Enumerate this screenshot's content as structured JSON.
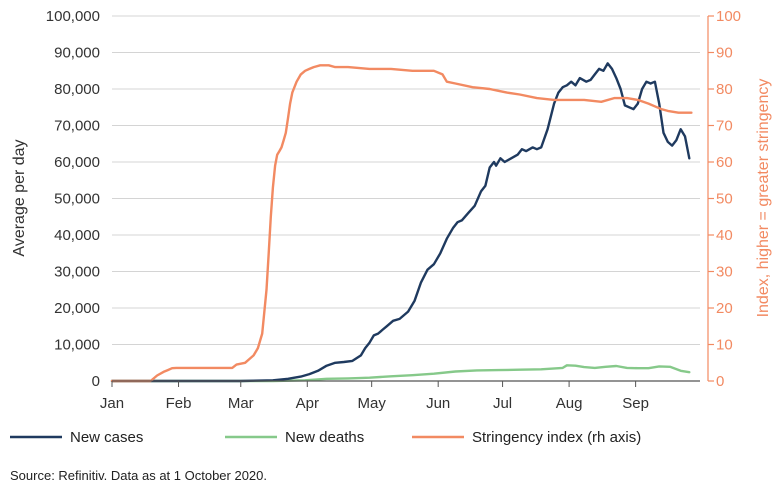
{
  "chart_data": {
    "type": "line",
    "xlabel": "",
    "ylabel": "Average per day",
    "y2label": "Index, higher = greater stringency",
    "ylim": [
      0,
      100000
    ],
    "y2lim": [
      0,
      100
    ],
    "yticks": [
      "0",
      "10,000",
      "20,000",
      "30,000",
      "40,000",
      "50,000",
      "60,000",
      "70,000",
      "80,000",
      "90,000",
      "100,000"
    ],
    "y2ticks": [
      "0",
      "10",
      "20",
      "30",
      "40",
      "50",
      "60",
      "70",
      "80",
      "90",
      "100"
    ],
    "x_unit": "days since 1 January 2020",
    "xlim": [
      0,
      274
    ],
    "month_ticks": [
      {
        "label": "Jan",
        "day": 0
      },
      {
        "label": "Feb",
        "day": 31
      },
      {
        "label": "Mar",
        "day": 60
      },
      {
        "label": "Apr",
        "day": 91
      },
      {
        "label": "May",
        "day": 121
      },
      {
        "label": "Jun",
        "day": 152
      },
      {
        "label": "Jul",
        "day": 182
      },
      {
        "label": "Aug",
        "day": 213
      },
      {
        "label": "Sep",
        "day": 244
      }
    ],
    "grid": "horizontal",
    "series": [
      {
        "name": "New cases",
        "axis": "left",
        "color": "#1f3a5f",
        "x": [
          0,
          40,
          60,
          75,
          82,
          88,
          92,
          96,
          100,
          104,
          108,
          112,
          116,
          118,
          120,
          122,
          124,
          126,
          128,
          131,
          134,
          138,
          141,
          144,
          147,
          150,
          153,
          156,
          159,
          161,
          163,
          166,
          169,
          172,
          174,
          176,
          178,
          179,
          181,
          183,
          186,
          189,
          191,
          193,
          196,
          198,
          200,
          203,
          206,
          208,
          210,
          212,
          214,
          216,
          218,
          221,
          223,
          225,
          227,
          229,
          231,
          233,
          235,
          237,
          239,
          241,
          243,
          245,
          247,
          249,
          251,
          253,
          255,
          257,
          259,
          261,
          263,
          265,
          267,
          269
        ],
        "y": [
          0,
          0,
          0,
          200,
          600,
          1200,
          1900,
          2800,
          4200,
          5000,
          5200,
          5500,
          7000,
          9000,
          10500,
          12500,
          13000,
          14000,
          15000,
          16500,
          17000,
          19000,
          22000,
          27000,
          30500,
          32000,
          35000,
          39000,
          42000,
          43500,
          44000,
          46000,
          48000,
          52000,
          53500,
          58500,
          60000,
          59000,
          61000,
          60000,
          61000,
          62000,
          63500,
          63000,
          64000,
          63500,
          64000,
          69000,
          76000,
          79000,
          80500,
          81000,
          82000,
          81000,
          83000,
          82000,
          82500,
          84000,
          85500,
          85000,
          87000,
          85500,
          83000,
          80000,
          75500,
          75000,
          74500,
          76000,
          80000,
          82000,
          81500,
          82000,
          76000,
          68000,
          65500,
          64500,
          66000,
          69000,
          67000,
          61000
        ]
      },
      {
        "name": "New deaths",
        "axis": "left",
        "color": "#86c98a",
        "x": [
          0,
          75,
          90,
          100,
          110,
          120,
          130,
          140,
          150,
          160,
          170,
          180,
          190,
          200,
          210,
          212,
          216,
          220,
          225,
          230,
          235,
          240,
          245,
          250,
          255,
          260,
          265,
          269
        ],
        "y": [
          0,
          0,
          200,
          600,
          700,
          900,
          1300,
          1600,
          2000,
          2600,
          2900,
          3000,
          3100,
          3200,
          3600,
          4300,
          4200,
          3800,
          3600,
          3900,
          4100,
          3600,
          3500,
          3500,
          4000,
          3900,
          2800,
          2400
        ]
      },
      {
        "name": "Stringency index (rh axis)",
        "axis": "right",
        "color": "#f28a62",
        "x": [
          0,
          18,
          21,
          24,
          26,
          28,
          30,
          56,
          58,
          62,
          64,
          66,
          68,
          70,
          72,
          73,
          74,
          75,
          76,
          77,
          78,
          79,
          80,
          81,
          82,
          83,
          84,
          86,
          88,
          90,
          92,
          94,
          97,
          101,
          104,
          110,
          120,
          130,
          140,
          150,
          154,
          156,
          160,
          168,
          176,
          180,
          184,
          190,
          198,
          206,
          214,
          220,
          228,
          234,
          240,
          245,
          250,
          254,
          256,
          259,
          264,
          268,
          270
        ],
        "y": [
          0,
          0,
          1.5,
          2.5,
          3,
          3.5,
          3.6,
          3.6,
          4.5,
          5,
          6,
          7,
          9,
          13,
          25,
          35,
          45,
          53,
          59,
          62,
          63,
          64,
          66,
          68,
          72,
          76,
          79,
          82,
          84,
          85,
          85.5,
          86,
          86.5,
          86.5,
          86,
          86,
          85.5,
          85.5,
          85,
          85,
          84,
          82,
          81.5,
          80.5,
          80,
          79.5,
          79,
          78.5,
          77.5,
          77,
          77,
          77,
          76.5,
          77.5,
          77.5,
          77,
          76,
          75,
          74.5,
          74,
          73.5,
          73.5,
          73.5
        ]
      }
    ]
  },
  "legend": [
    {
      "label": "New cases",
      "color": "#1f3a5f"
    },
    {
      "label": "New deaths",
      "color": "#86c98a"
    },
    {
      "label": "Stringency index (rh axis)",
      "color": "#f28a62"
    }
  ],
  "colors": {
    "left_axis_text": "#333333",
    "right_axis": "#f28a62",
    "grid": "#d4d4d4"
  },
  "source": "Source: Refinitiv. Data as at 1 October 2020."
}
